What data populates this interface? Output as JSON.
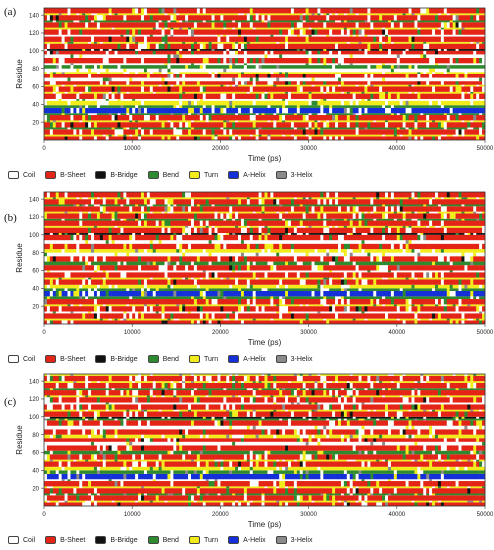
{
  "colors": {
    "coil": "#ffffff",
    "b_sheet": "#e32416",
    "b_bridge": "#111111",
    "bend": "#2e8a2e",
    "turn": "#f2ec1a",
    "a_helix": "#1530d8",
    "three_helix": "#8a8a8a"
  },
  "legend": [
    {
      "label": "Coil",
      "color": "#ffffff"
    },
    {
      "label": "B-Sheet",
      "color": "#e32416"
    },
    {
      "label": "B-Bridge",
      "color": "#111111"
    },
    {
      "label": "Bend",
      "color": "#2e8a2e"
    },
    {
      "label": "Turn",
      "color": "#f2ec1a"
    },
    {
      "label": "A-Helix",
      "color": "#1530d8"
    },
    {
      "label": "3-Helix",
      "color": "#8a8a8a"
    }
  ],
  "chart_data": [
    {
      "panel_label": "(a)",
      "type": "heatmap",
      "xlabel": "Time (ps)",
      "ylabel": "Residue",
      "xlim": [
        0,
        50000
      ],
      "ylim": [
        0,
        148
      ],
      "x_ticks": [
        0,
        10000,
        20000,
        30000,
        40000,
        50000
      ],
      "y_ticks": [
        20,
        40,
        60,
        80,
        100,
        120,
        140
      ],
      "residue_bands": [
        {
          "from": 0,
          "to": 4,
          "state": "b_sheet"
        },
        {
          "from": 4,
          "to": 6,
          "state": "turn"
        },
        {
          "from": 6,
          "to": 12,
          "state": "b_sheet"
        },
        {
          "from": 12,
          "to": 14,
          "state": "bend"
        },
        {
          "from": 14,
          "to": 20,
          "state": "b_sheet"
        },
        {
          "from": 20,
          "to": 22,
          "state": "turn"
        },
        {
          "from": 22,
          "to": 28,
          "state": "b_sheet"
        },
        {
          "from": 28,
          "to": 30,
          "state": "bend"
        },
        {
          "from": 30,
          "to": 36,
          "state": "a_helix"
        },
        {
          "from": 36,
          "to": 39,
          "state": "bend"
        },
        {
          "from": 39,
          "to": 44,
          "state": "turn"
        },
        {
          "from": 44,
          "to": 46,
          "state": "coil"
        },
        {
          "from": 46,
          "to": 52,
          "state": "b_sheet"
        },
        {
          "from": 52,
          "to": 54,
          "state": "turn"
        },
        {
          "from": 54,
          "to": 60,
          "state": "b_sheet"
        },
        {
          "from": 60,
          "to": 62,
          "state": "turn"
        },
        {
          "from": 62,
          "to": 66,
          "state": "b_sheet"
        },
        {
          "from": 66,
          "to": 70,
          "state": "coil"
        },
        {
          "from": 70,
          "to": 74,
          "state": "b_sheet"
        },
        {
          "from": 74,
          "to": 76,
          "state": "turn"
        },
        {
          "from": 76,
          "to": 80,
          "state": "coil"
        },
        {
          "from": 80,
          "to": 84,
          "state": "bend"
        },
        {
          "from": 84,
          "to": 86,
          "state": "coil"
        },
        {
          "from": 86,
          "to": 92,
          "state": "b_sheet"
        },
        {
          "from": 92,
          "to": 96,
          "state": "coil"
        },
        {
          "from": 96,
          "to": 100,
          "state": "b_sheet"
        },
        {
          "from": 100,
          "to": 102,
          "state": "b_bridge"
        },
        {
          "from": 102,
          "to": 108,
          "state": "b_sheet"
        },
        {
          "from": 108,
          "to": 110,
          "state": "turn"
        },
        {
          "from": 110,
          "to": 116,
          "state": "b_sheet"
        },
        {
          "from": 116,
          "to": 118,
          "state": "coil"
        },
        {
          "from": 118,
          "to": 124,
          "state": "b_sheet"
        },
        {
          "from": 124,
          "to": 126,
          "state": "turn"
        },
        {
          "from": 126,
          "to": 132,
          "state": "b_sheet"
        },
        {
          "from": 132,
          "to": 134,
          "state": "bend"
        },
        {
          "from": 134,
          "to": 140,
          "state": "b_sheet"
        },
        {
          "from": 140,
          "to": 142,
          "state": "turn"
        },
        {
          "from": 142,
          "to": 148,
          "state": "b_sheet"
        }
      ]
    },
    {
      "panel_label": "(b)",
      "type": "heatmap",
      "xlabel": "Time (ps)",
      "ylabel": "Residue",
      "xlim": [
        0,
        50000
      ],
      "ylim": [
        0,
        148
      ],
      "x_ticks": [
        0,
        10000,
        20000,
        30000,
        40000,
        50000
      ],
      "y_ticks": [
        20,
        40,
        60,
        80,
        100,
        120,
        140
      ],
      "residue_bands": [
        {
          "from": 0,
          "to": 4,
          "state": "b_sheet"
        },
        {
          "from": 4,
          "to": 6,
          "state": "turn"
        },
        {
          "from": 6,
          "to": 12,
          "state": "b_sheet"
        },
        {
          "from": 12,
          "to": 14,
          "state": "coil"
        },
        {
          "from": 14,
          "to": 20,
          "state": "b_sheet"
        },
        {
          "from": 20,
          "to": 22,
          "state": "turn"
        },
        {
          "from": 22,
          "to": 28,
          "state": "b_sheet"
        },
        {
          "from": 28,
          "to": 31,
          "state": "bend"
        },
        {
          "from": 31,
          "to": 37,
          "state": "a_helix"
        },
        {
          "from": 37,
          "to": 40,
          "state": "bend"
        },
        {
          "from": 40,
          "to": 44,
          "state": "turn"
        },
        {
          "from": 44,
          "to": 50,
          "state": "b_sheet"
        },
        {
          "from": 50,
          "to": 52,
          "state": "turn"
        },
        {
          "from": 52,
          "to": 58,
          "state": "b_sheet"
        },
        {
          "from": 58,
          "to": 60,
          "state": "coil"
        },
        {
          "from": 60,
          "to": 66,
          "state": "b_sheet"
        },
        {
          "from": 66,
          "to": 70,
          "state": "bend"
        },
        {
          "from": 70,
          "to": 76,
          "state": "b_sheet"
        },
        {
          "from": 76,
          "to": 80,
          "state": "coil"
        },
        {
          "from": 80,
          "to": 84,
          "state": "turn"
        },
        {
          "from": 84,
          "to": 90,
          "state": "b_sheet"
        },
        {
          "from": 90,
          "to": 94,
          "state": "coil"
        },
        {
          "from": 94,
          "to": 100,
          "state": "b_sheet"
        },
        {
          "from": 100,
          "to": 102,
          "state": "b_bridge"
        },
        {
          "from": 102,
          "to": 108,
          "state": "b_sheet"
        },
        {
          "from": 108,
          "to": 110,
          "state": "turn"
        },
        {
          "from": 110,
          "to": 116,
          "state": "b_sheet"
        },
        {
          "from": 116,
          "to": 118,
          "state": "bend"
        },
        {
          "from": 118,
          "to": 124,
          "state": "b_sheet"
        },
        {
          "from": 124,
          "to": 126,
          "state": "turn"
        },
        {
          "from": 126,
          "to": 132,
          "state": "b_sheet"
        },
        {
          "from": 132,
          "to": 134,
          "state": "bend"
        },
        {
          "from": 134,
          "to": 140,
          "state": "b_sheet"
        },
        {
          "from": 140,
          "to": 142,
          "state": "turn"
        },
        {
          "from": 142,
          "to": 148,
          "state": "b_sheet"
        }
      ]
    },
    {
      "panel_label": "(c)",
      "type": "heatmap",
      "xlabel": "Time (ps)",
      "ylabel": "Residue",
      "xlim": [
        0,
        50000
      ],
      "ylim": [
        0,
        148
      ],
      "x_ticks": [
        0,
        10000,
        20000,
        30000,
        40000,
        50000
      ],
      "y_ticks": [
        20,
        40,
        60,
        80,
        100,
        120,
        140
      ],
      "residue_bands": [
        {
          "from": 0,
          "to": 4,
          "state": "b_sheet"
        },
        {
          "from": 4,
          "to": 6,
          "state": "turn"
        },
        {
          "from": 6,
          "to": 12,
          "state": "b_sheet"
        },
        {
          "from": 12,
          "to": 14,
          "state": "bend"
        },
        {
          "from": 14,
          "to": 20,
          "state": "b_sheet"
        },
        {
          "from": 20,
          "to": 22,
          "state": "turn"
        },
        {
          "from": 22,
          "to": 28,
          "state": "b_sheet"
        },
        {
          "from": 28,
          "to": 30,
          "state": "coil"
        },
        {
          "from": 30,
          "to": 36,
          "state": "a_helix"
        },
        {
          "from": 36,
          "to": 40,
          "state": "bend"
        },
        {
          "from": 40,
          "to": 44,
          "state": "turn"
        },
        {
          "from": 44,
          "to": 50,
          "state": "b_sheet"
        },
        {
          "from": 50,
          "to": 52,
          "state": "turn"
        },
        {
          "from": 52,
          "to": 58,
          "state": "b_sheet"
        },
        {
          "from": 58,
          "to": 62,
          "state": "bend"
        },
        {
          "from": 62,
          "to": 68,
          "state": "b_sheet"
        },
        {
          "from": 68,
          "to": 72,
          "state": "coil"
        },
        {
          "from": 72,
          "to": 76,
          "state": "b_sheet"
        },
        {
          "from": 76,
          "to": 80,
          "state": "turn"
        },
        {
          "from": 80,
          "to": 86,
          "state": "b_sheet"
        },
        {
          "from": 86,
          "to": 90,
          "state": "coil"
        },
        {
          "from": 90,
          "to": 96,
          "state": "b_sheet"
        },
        {
          "from": 96,
          "to": 98,
          "state": "bend"
        },
        {
          "from": 98,
          "to": 100,
          "state": "b_bridge"
        },
        {
          "from": 100,
          "to": 106,
          "state": "b_sheet"
        },
        {
          "from": 106,
          "to": 108,
          "state": "turn"
        },
        {
          "from": 108,
          "to": 114,
          "state": "b_sheet"
        },
        {
          "from": 114,
          "to": 116,
          "state": "coil"
        },
        {
          "from": 116,
          "to": 122,
          "state": "b_sheet"
        },
        {
          "from": 122,
          "to": 124,
          "state": "turn"
        },
        {
          "from": 124,
          "to": 130,
          "state": "b_sheet"
        },
        {
          "from": 130,
          "to": 132,
          "state": "bend"
        },
        {
          "from": 132,
          "to": 138,
          "state": "b_sheet"
        },
        {
          "from": 138,
          "to": 140,
          "state": "turn"
        },
        {
          "from": 140,
          "to": 146,
          "state": "b_sheet"
        },
        {
          "from": 146,
          "to": 148,
          "state": "turn"
        }
      ]
    }
  ]
}
